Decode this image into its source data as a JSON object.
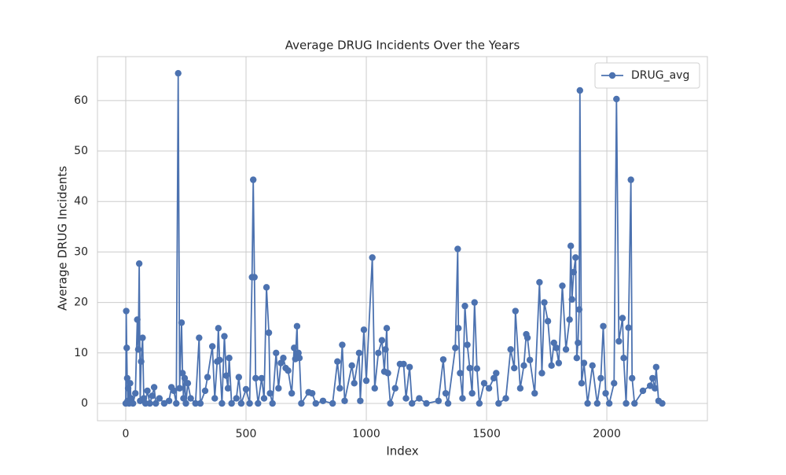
{
  "chart_data": {
    "type": "line",
    "title": "Average DRUG Incidents Over the Years",
    "x_label": "Index",
    "y_label": "Average DRUG Incidents",
    "x": [
      0,
      2,
      4,
      6,
      8,
      10,
      14,
      18,
      22,
      30,
      40,
      48,
      52,
      56,
      60,
      64,
      70,
      75,
      82,
      90,
      100,
      110,
      118,
      125,
      140,
      160,
      180,
      190,
      200,
      210,
      218,
      224,
      232,
      236,
      240,
      245,
      250,
      258,
      270,
      290,
      305,
      310,
      330,
      340,
      360,
      370,
      380,
      385,
      390,
      400,
      410,
      418,
      425,
      430,
      440,
      460,
      470,
      480,
      500,
      515,
      525,
      530,
      535,
      540,
      550,
      565,
      575,
      585,
      595,
      600,
      610,
      625,
      635,
      645,
      655,
      665,
      675,
      690,
      700,
      705,
      712,
      715,
      718,
      722,
      730,
      760,
      775,
      790,
      820,
      860,
      880,
      890,
      900,
      910,
      940,
      950,
      970,
      975,
      990,
      1000,
      1025,
      1035,
      1050,
      1065,
      1075,
      1080,
      1085,
      1090,
      1100,
      1120,
      1140,
      1155,
      1165,
      1180,
      1190,
      1220,
      1250,
      1300,
      1320,
      1330,
      1340,
      1370,
      1380,
      1383,
      1390,
      1400,
      1410,
      1420,
      1430,
      1440,
      1450,
      1460,
      1470,
      1490,
      1510,
      1530,
      1540,
      1550,
      1580,
      1600,
      1615,
      1620,
      1640,
      1655,
      1665,
      1670,
      1680,
      1700,
      1720,
      1730,
      1740,
      1755,
      1770,
      1780,
      1790,
      1800,
      1815,
      1830,
      1845,
      1850,
      1855,
      1862,
      1870,
      1875,
      1880,
      1885,
      1888,
      1895,
      1905,
      1920,
      1940,
      1960,
      1975,
      1985,
      1995,
      2010,
      2030,
      2040,
      2050,
      2065,
      2070,
      2080,
      2090,
      2100,
      2105,
      2115,
      2150,
      2180,
      2190,
      2200,
      2205,
      2215,
      2230
    ],
    "series": [
      {
        "name": "DRUG_avg",
        "color": "#4c72b0",
        "values": [
          0,
          18.3,
          11,
          5,
          0.5,
          3,
          0,
          4,
          1,
          0,
          2,
          16.6,
          10.7,
          27.7,
          0.5,
          8.3,
          13,
          1,
          0,
          2.5,
          0,
          1.5,
          3.2,
          0,
          1,
          0,
          0.5,
          3.2,
          2.5,
          0,
          65.4,
          3,
          16,
          6,
          1,
          5,
          0,
          4,
          1,
          0,
          13,
          0,
          2.5,
          5.2,
          11.3,
          1,
          8.3,
          14.9,
          8.6,
          0,
          13.3,
          5.5,
          3,
          9,
          0,
          1,
          5.2,
          0,
          2.8,
          0,
          25,
          44.3,
          25,
          5,
          0,
          5,
          1,
          23,
          14,
          2,
          0,
          10,
          3,
          8,
          9,
          7,
          6.5,
          2,
          11,
          8.8,
          15.3,
          9.5,
          10,
          9,
          0,
          2.2,
          2,
          0,
          0.5,
          0,
          8.3,
          3,
          11.6,
          0.5,
          7.5,
          4,
          10,
          0.5,
          14.6,
          4.5,
          28.9,
          3,
          10,
          12.5,
          6.3,
          10.7,
          14.9,
          6,
          0,
          3,
          7.8,
          7.8,
          1,
          7.2,
          0,
          1,
          0,
          0.5,
          8.7,
          2,
          0,
          11,
          30.6,
          14.9,
          6,
          1,
          19.3,
          11.6,
          7,
          2,
          20,
          6.9,
          0,
          4,
          3,
          5,
          6,
          0,
          1,
          10.7,
          7,
          18.3,
          3,
          7.5,
          13.7,
          13,
          8.6,
          2,
          24,
          6,
          20,
          16.3,
          7.5,
          12,
          11,
          8,
          23.3,
          10.7,
          16.6,
          31.2,
          20.6,
          26,
          28.9,
          9,
          12,
          18.6,
          62,
          4,
          8,
          0,
          7.5,
          0,
          5,
          15.3,
          2,
          0,
          4,
          60.3,
          12.3,
          16.9,
          9,
          0,
          15,
          44.3,
          5,
          0,
          2.5,
          3.5,
          5,
          3,
          7.2,
          0.5,
          0
        ]
      }
    ],
    "xlim": [
      -117.6,
      2418
    ],
    "ylim": [
      -3.43,
      68.7
    ],
    "xticks": [
      0,
      500,
      1000,
      1500,
      2000
    ],
    "yticks": [
      0,
      10,
      20,
      30,
      40,
      50,
      60
    ],
    "grid": true,
    "legend": "upper right"
  }
}
